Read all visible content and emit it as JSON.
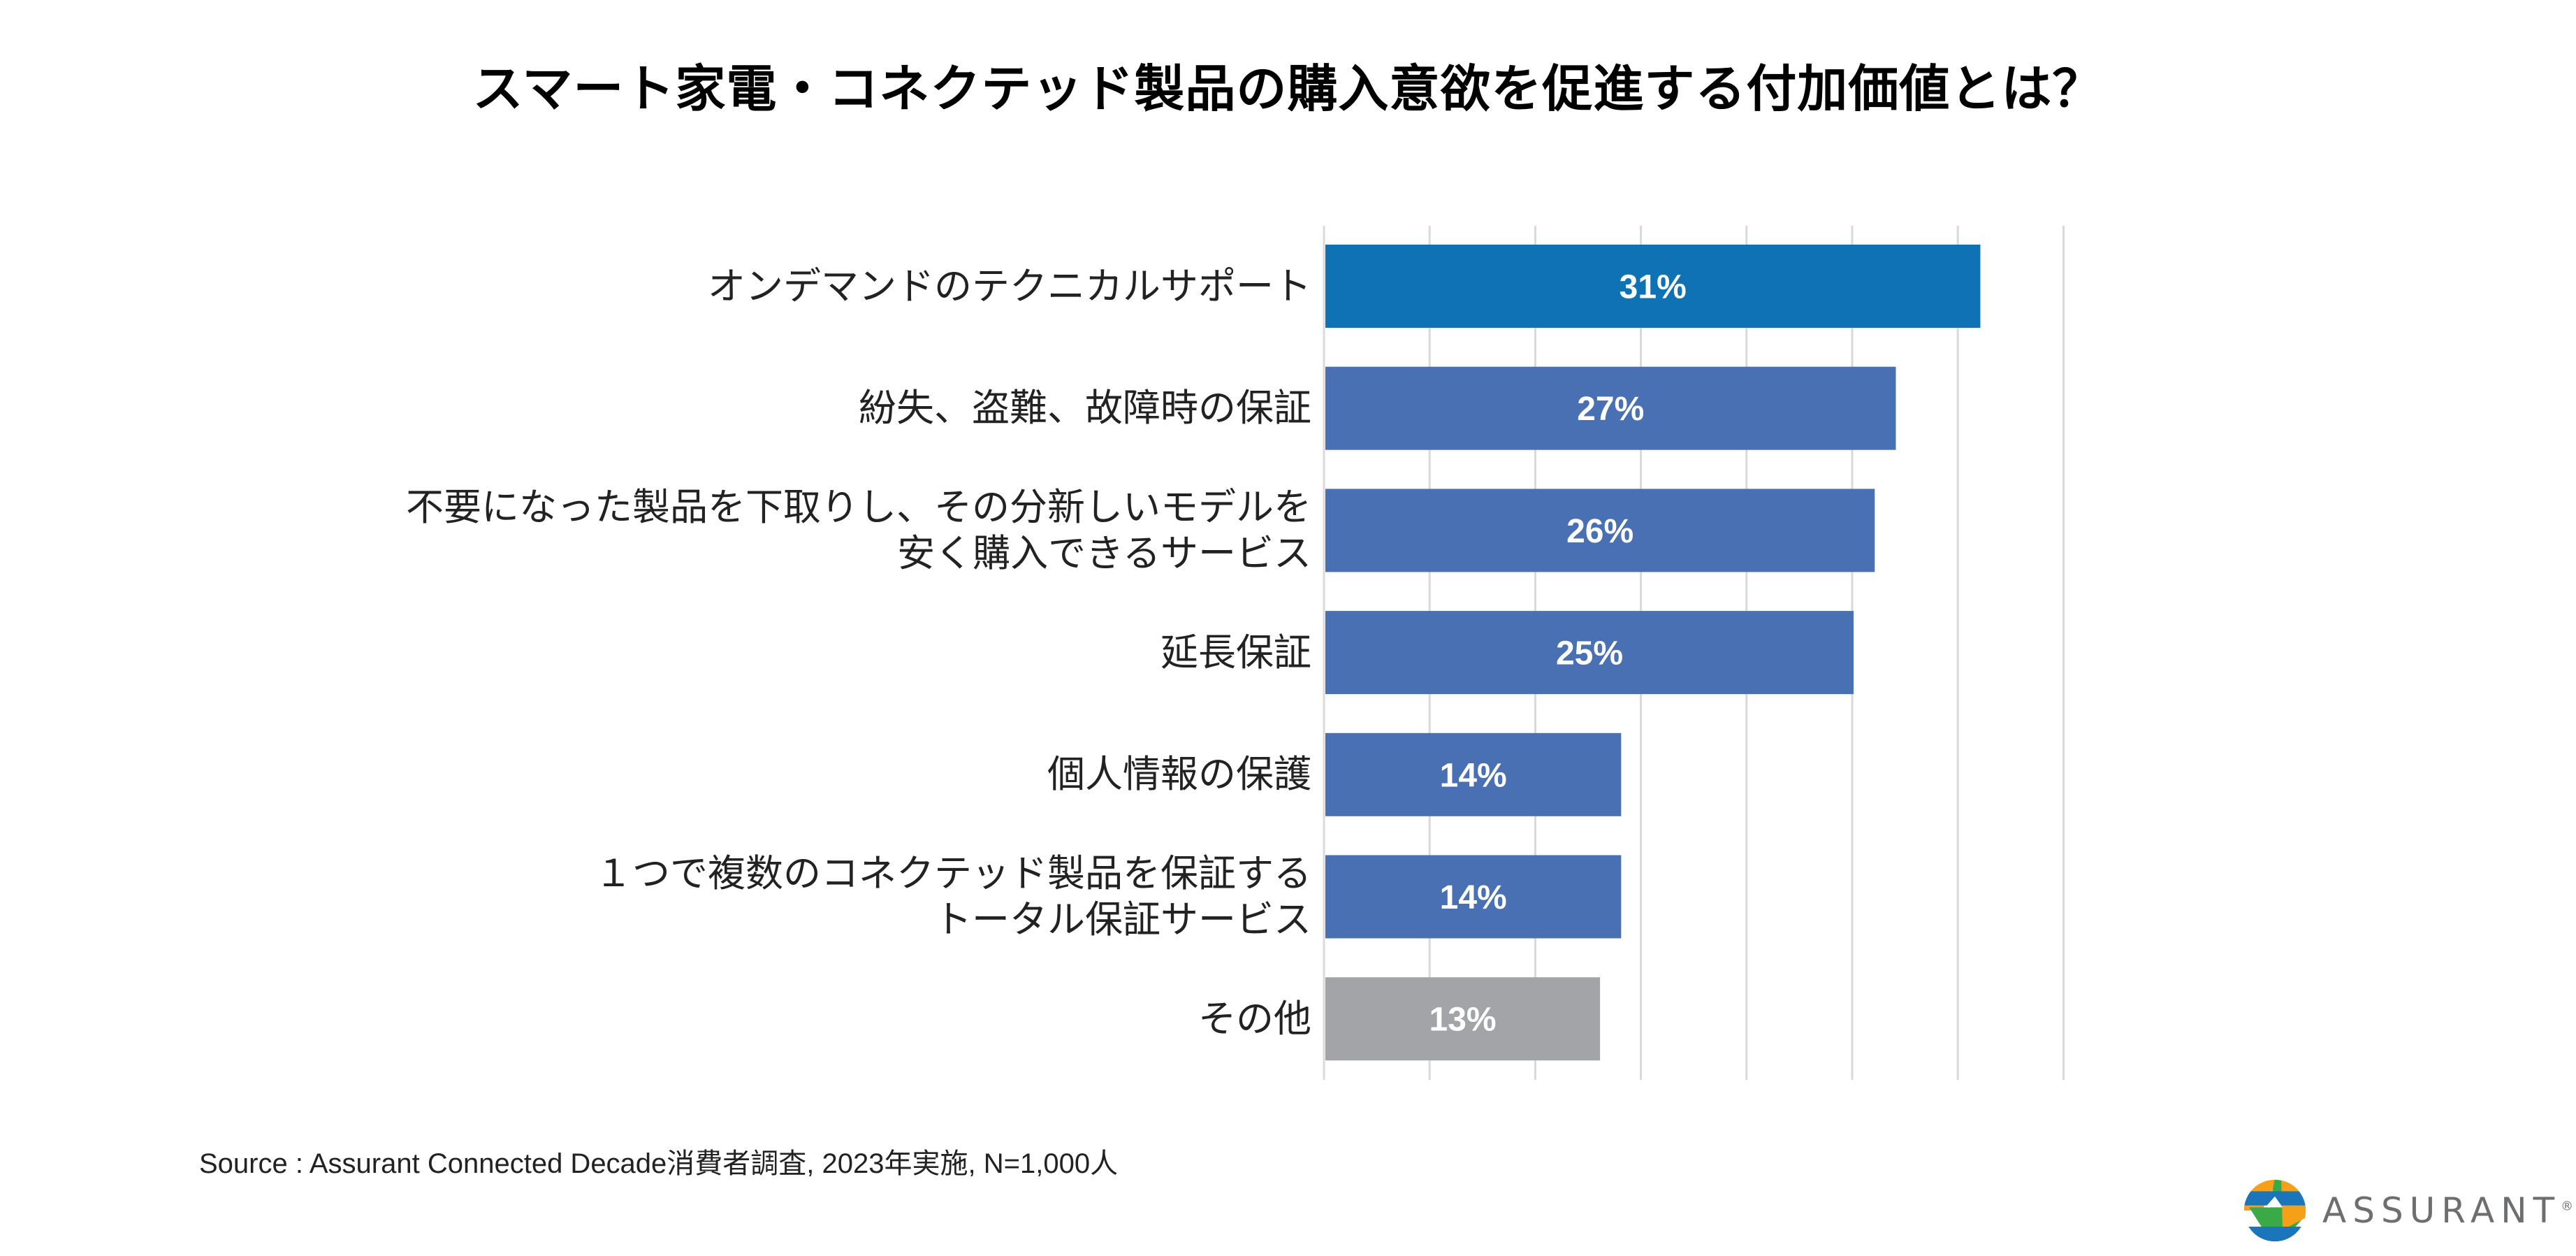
{
  "chart_data": {
    "type": "bar",
    "orientation": "horizontal",
    "title": "スマート家電・コネクテッド製品の購入意欲を促進する付加価値とは？",
    "categories": [
      [
        "オンデマンドのテクニカルサポート"
      ],
      [
        "紛失、盗難、故障時の保証"
      ],
      [
        "不要になった製品を下取りし、その分新しいモデルを",
        "安く購入できるサービス"
      ],
      [
        "延長保証"
      ],
      [
        "個人情報の保護"
      ],
      [
        "１つで複数のコネクテッド製品を保証する",
        "トータル保証サービス"
      ],
      [
        "その他"
      ]
    ],
    "values": [
      31,
      27,
      26,
      25,
      14,
      14,
      13
    ],
    "value_labels": [
      "31%",
      "27%",
      "26%",
      "25%",
      "14%",
      "14%",
      "13%"
    ],
    "bar_colors": [
      "#0e72b5",
      "#4a70b4",
      "#4a70b4",
      "#4a70b4",
      "#4a70b4",
      "#4a70b4",
      "#a3a4a7"
    ],
    "xlim": [
      0,
      35
    ],
    "gridline_step": 5,
    "grid": true,
    "gridline_color": "#d9d9d9",
    "xlabel": "",
    "ylabel": ""
  },
  "footer": {
    "source": "Source : Assurant Connected Decade消費者調査, 2023年実施, N=1,000人"
  },
  "logo": {
    "text": "ASSURANT",
    "registered": "®",
    "colors": [
      "#1b75bb",
      "#f6a01a",
      "#3aaa49"
    ]
  }
}
